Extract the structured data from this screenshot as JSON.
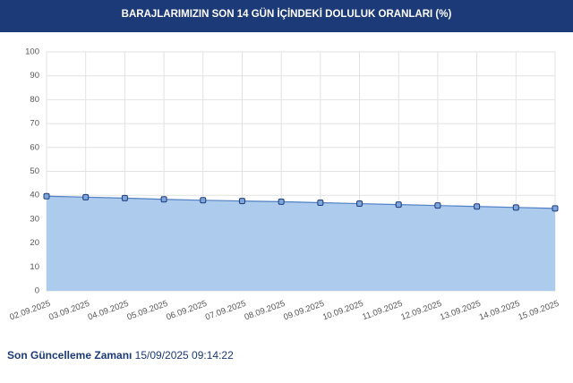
{
  "chart_data": {
    "type": "area",
    "title": "BARAJLARIMIZIN SON 14 GÜN İÇİNDEKİ DOLULUK ORANLARI (%)",
    "categories": [
      "02.09.2025",
      "03.09.2025",
      "04.09.2025",
      "05.09.2025",
      "06.09.2025",
      "07.09.2025",
      "08.09.2025",
      "09.09.2025",
      "10.09.2025",
      "11.09.2025",
      "12.09.2025",
      "13.09.2025",
      "14.09.2025",
      "15.09.2025"
    ],
    "values": [
      39.6,
      39.2,
      38.8,
      38.3,
      37.9,
      37.6,
      37.3,
      36.9,
      36.5,
      36.1,
      35.7,
      35.3,
      34.9,
      34.5
    ],
    "color": "#4f7fc4",
    "fill": "#adcbec",
    "ylim": [
      0,
      100
    ],
    "yticks": [
      0,
      10,
      20,
      30,
      40,
      50,
      60,
      70,
      80,
      90,
      100
    ],
    "grid": true
  },
  "footer": {
    "label": "Son Güncelleme Zamanı",
    "value": ": 15/09/2025 09:14:22"
  }
}
